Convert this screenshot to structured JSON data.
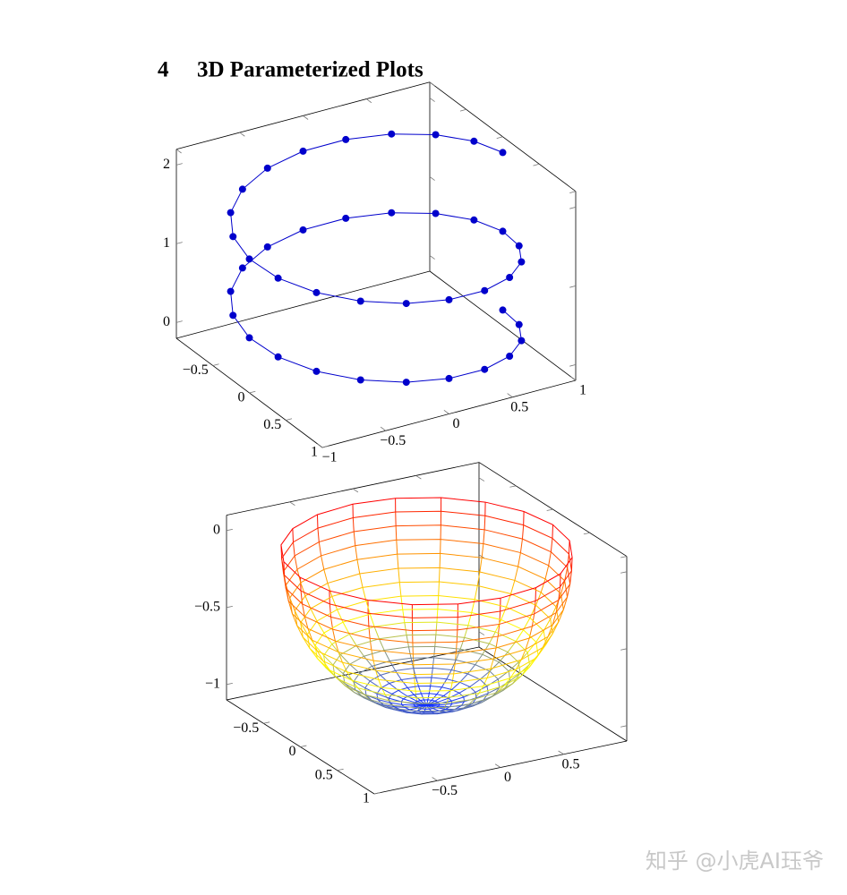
{
  "section": {
    "number": "4",
    "title": "3D Parameterized Plots"
  },
  "chart_data": [
    {
      "type": "line3d",
      "color": "#0000cc",
      "marker": true,
      "x": [
        1,
        0.951,
        0.809,
        0.588,
        0.309,
        0,
        -0.309,
        -0.588,
        -0.809,
        -0.951,
        -1,
        -0.951,
        -0.809,
        -0.588,
        -0.309,
        0,
        0.309,
        0.588,
        0.809,
        0.951,
        1,
        0.951,
        0.809,
        0.588,
        0.309,
        0,
        -0.309,
        -0.588,
        -0.809,
        -0.951,
        -1,
        -0.951,
        -0.809,
        -0.588,
        -0.309,
        0,
        0.309,
        0.588,
        0.809,
        0.951,
        1
      ],
      "y": [
        0,
        0.309,
        0.588,
        0.809,
        0.951,
        1,
        0.951,
        0.809,
        0.588,
        0.309,
        0,
        -0.309,
        -0.588,
        -0.809,
        -0.951,
        -1,
        -0.951,
        -0.809,
        -0.588,
        -0.309,
        0,
        0.309,
        0.588,
        0.809,
        0.951,
        1,
        0.951,
        0.809,
        0.588,
        0.309,
        0,
        -0.309,
        -0.588,
        -0.809,
        -0.951,
        -1,
        -0.951,
        -0.809,
        -0.588,
        -0.309,
        0
      ],
      "z": [
        0,
        0.05,
        0.1,
        0.15,
        0.2,
        0.25,
        0.3,
        0.35,
        0.4,
        0.45,
        0.5,
        0.55,
        0.6,
        0.65,
        0.7,
        0.75,
        0.8,
        0.85,
        0.9,
        0.95,
        1,
        1.05,
        1.1,
        1.15,
        1.2,
        1.25,
        1.3,
        1.35,
        1.4,
        1.45,
        1.5,
        1.55,
        1.6,
        1.65,
        1.7,
        1.75,
        1.8,
        1.85,
        1.9,
        1.95,
        2
      ],
      "xlim": [
        -1,
        1
      ],
      "ylim": [
        -1,
        1
      ],
      "zlim": [
        -0.2,
        2.2
      ],
      "xticks": [
        {
          "value": -1,
          "label": "−1"
        },
        {
          "value": -0.5,
          "label": "−0.5"
        },
        0,
        0.5,
        1
      ],
      "yticks": [
        {
          "value": -0.5,
          "label": "−0.5"
        },
        0,
        0.5,
        1
      ],
      "zticks": [
        0,
        1,
        2
      ]
    },
    {
      "type": "mesh3d",
      "ring_z": [
        -1,
        -0.996,
        -0.985,
        -0.966,
        -0.94,
        -0.906,
        -0.866,
        -0.819,
        -0.766,
        -0.707,
        -0.643,
        -0.574,
        -0.5,
        -0.423,
        -0.342,
        -0.259,
        -0.174,
        -0.087,
        0
      ],
      "ring_r": [
        0,
        0.087,
        0.174,
        0.259,
        0.342,
        0.423,
        0.5,
        0.574,
        0.643,
        0.707,
        0.766,
        0.819,
        0.866,
        0.906,
        0.94,
        0.966,
        0.985,
        0.996,
        1
      ],
      "meridian_angles": [
        0,
        18,
        36,
        54,
        72,
        90,
        108,
        126,
        144,
        162,
        180,
        198,
        216,
        234,
        252,
        270,
        288,
        306,
        324,
        342
      ],
      "colormap": [
        "#1030ff",
        "#ffff00",
        "#ff9000",
        "#ff0000"
      ],
      "xlim": [
        -1,
        1
      ],
      "ylim": [
        -1,
        1
      ],
      "zlim": [
        -1.1,
        0.1
      ],
      "xticks": [
        {
          "value": -0.5,
          "label": "−0.5"
        },
        0,
        0.5
      ],
      "yticks": [
        {
          "value": -0.5,
          "label": "−0.5"
        },
        0,
        0.5,
        1
      ],
      "zticks": [
        {
          "value": -1,
          "label": "−1"
        },
        {
          "value": -0.5,
          "label": "−0.5"
        },
        0
      ]
    }
  ],
  "watermark": "知乎 @小虎AI珏爷"
}
